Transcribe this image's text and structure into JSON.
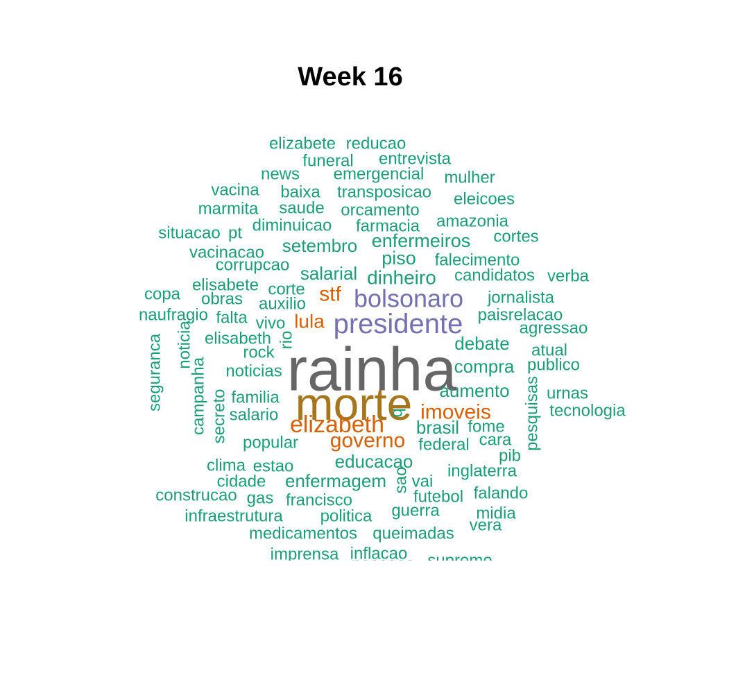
{
  "chart_data": {
    "type": "wordcloud",
    "title": "Week 16",
    "colors": {
      "tier1": "#1b9e77",
      "tier2": "#d95f02",
      "tier3": "#7570b3",
      "tier4": "#a6761d",
      "tier5": "#666666"
    },
    "words": [
      {
        "text": "rainha",
        "tier": 5
      },
      {
        "text": "morte",
        "tier": 4
      },
      {
        "text": "presidente",
        "tier": 3
      },
      {
        "text": "bolsonaro",
        "tier": 3
      },
      {
        "text": "elizabeth",
        "tier": 2
      },
      {
        "text": "governo",
        "tier": 2
      },
      {
        "text": "imoveis",
        "tier": 2
      },
      {
        "text": "stf",
        "tier": 2
      },
      {
        "text": "lula",
        "tier": 2
      },
      {
        "text": "elizabete",
        "tier": 1
      },
      {
        "text": "reducao",
        "tier": 1
      },
      {
        "text": "funeral",
        "tier": 1
      },
      {
        "text": "entrevista",
        "tier": 1
      },
      {
        "text": "news",
        "tier": 1
      },
      {
        "text": "emergencial",
        "tier": 1
      },
      {
        "text": "mulher",
        "tier": 1
      },
      {
        "text": "vacina",
        "tier": 1
      },
      {
        "text": "baixa",
        "tier": 1
      },
      {
        "text": "transposicao",
        "tier": 1
      },
      {
        "text": "eleicoes",
        "tier": 1
      },
      {
        "text": "marmita",
        "tier": 1
      },
      {
        "text": "saude",
        "tier": 1
      },
      {
        "text": "orcamento",
        "tier": 1
      },
      {
        "text": "amazonia",
        "tier": 1
      },
      {
        "text": "situacao",
        "tier": 1
      },
      {
        "text": "pt",
        "tier": 1
      },
      {
        "text": "diminuicao",
        "tier": 1
      },
      {
        "text": "farmacia",
        "tier": 1
      },
      {
        "text": "cortes",
        "tier": 1
      },
      {
        "text": "setembro",
        "tier": 1
      },
      {
        "text": "enfermeiros",
        "tier": 1
      },
      {
        "text": "vacinacao",
        "tier": 1
      },
      {
        "text": "piso",
        "tier": 1
      },
      {
        "text": "falecimento",
        "tier": 1
      },
      {
        "text": "corrupcao",
        "tier": 1
      },
      {
        "text": "salarial",
        "tier": 1
      },
      {
        "text": "dinheiro",
        "tier": 1
      },
      {
        "text": "candidatos",
        "tier": 1
      },
      {
        "text": "verba",
        "tier": 1
      },
      {
        "text": "elisabete",
        "tier": 1
      },
      {
        "text": "copa",
        "tier": 1
      },
      {
        "text": "corte",
        "tier": 1
      },
      {
        "text": "jornalista",
        "tier": 1
      },
      {
        "text": "obras",
        "tier": 1
      },
      {
        "text": "auxilio",
        "tier": 1
      },
      {
        "text": "naufragio",
        "tier": 1
      },
      {
        "text": "falta",
        "tier": 1
      },
      {
        "text": "paisrelacao",
        "tier": 1
      },
      {
        "text": "vivo",
        "tier": 1
      },
      {
        "text": "agressao",
        "tier": 1
      },
      {
        "text": "elisabeth",
        "tier": 1
      },
      {
        "text": "debate",
        "tier": 1
      },
      {
        "text": "noticia",
        "tier": 1
      },
      {
        "text": "rio",
        "tier": 1
      },
      {
        "text": "rock",
        "tier": 1
      },
      {
        "text": "atual",
        "tier": 1
      },
      {
        "text": "seguranca",
        "tier": 1
      },
      {
        "text": "campanha",
        "tier": 1
      },
      {
        "text": "publico",
        "tier": 1
      },
      {
        "text": "noticias",
        "tier": 1
      },
      {
        "text": "compra",
        "tier": 1
      },
      {
        "text": "aumento",
        "tier": 1
      },
      {
        "text": "urnas",
        "tier": 1
      },
      {
        "text": "pesquisas",
        "tier": 1
      },
      {
        "text": "familia",
        "tier": 1
      },
      {
        "text": "secreto",
        "tier": 1
      },
      {
        "text": "tecnologia",
        "tier": 1
      },
      {
        "text": "salario",
        "tier": 1
      },
      {
        "text": "q",
        "tier": 1
      },
      {
        "text": "brasil",
        "tier": 1
      },
      {
        "text": "fome",
        "tier": 1
      },
      {
        "text": "popular",
        "tier": 1
      },
      {
        "text": "cara",
        "tier": 1
      },
      {
        "text": "federal",
        "tier": 1
      },
      {
        "text": "pib",
        "tier": 1
      },
      {
        "text": "clima",
        "tier": 1
      },
      {
        "text": "estao",
        "tier": 1
      },
      {
        "text": "educacao",
        "tier": 1
      },
      {
        "text": "inglaterra",
        "tier": 1
      },
      {
        "text": "cidade",
        "tier": 1
      },
      {
        "text": "enfermagem",
        "tier": 1
      },
      {
        "text": "sao",
        "tier": 1
      },
      {
        "text": "vai",
        "tier": 1
      },
      {
        "text": "construcao",
        "tier": 1
      },
      {
        "text": "falando",
        "tier": 1
      },
      {
        "text": "gas",
        "tier": 1
      },
      {
        "text": "francisco",
        "tier": 1
      },
      {
        "text": "futebol",
        "tier": 1
      },
      {
        "text": "guerra",
        "tier": 1
      },
      {
        "text": "midia",
        "tier": 1
      },
      {
        "text": "infraestrutura",
        "tier": 1
      },
      {
        "text": "politica",
        "tier": 1
      },
      {
        "text": "vera",
        "tier": 1
      },
      {
        "text": "medicamentos",
        "tier": 1
      },
      {
        "text": "queimadas",
        "tier": 1
      },
      {
        "text": "imprensa",
        "tier": 1
      },
      {
        "text": "inflacao",
        "tier": 1
      },
      {
        "text": "pessoas",
        "tier": 1
      },
      {
        "text": "supremo",
        "tier": 1
      }
    ]
  }
}
